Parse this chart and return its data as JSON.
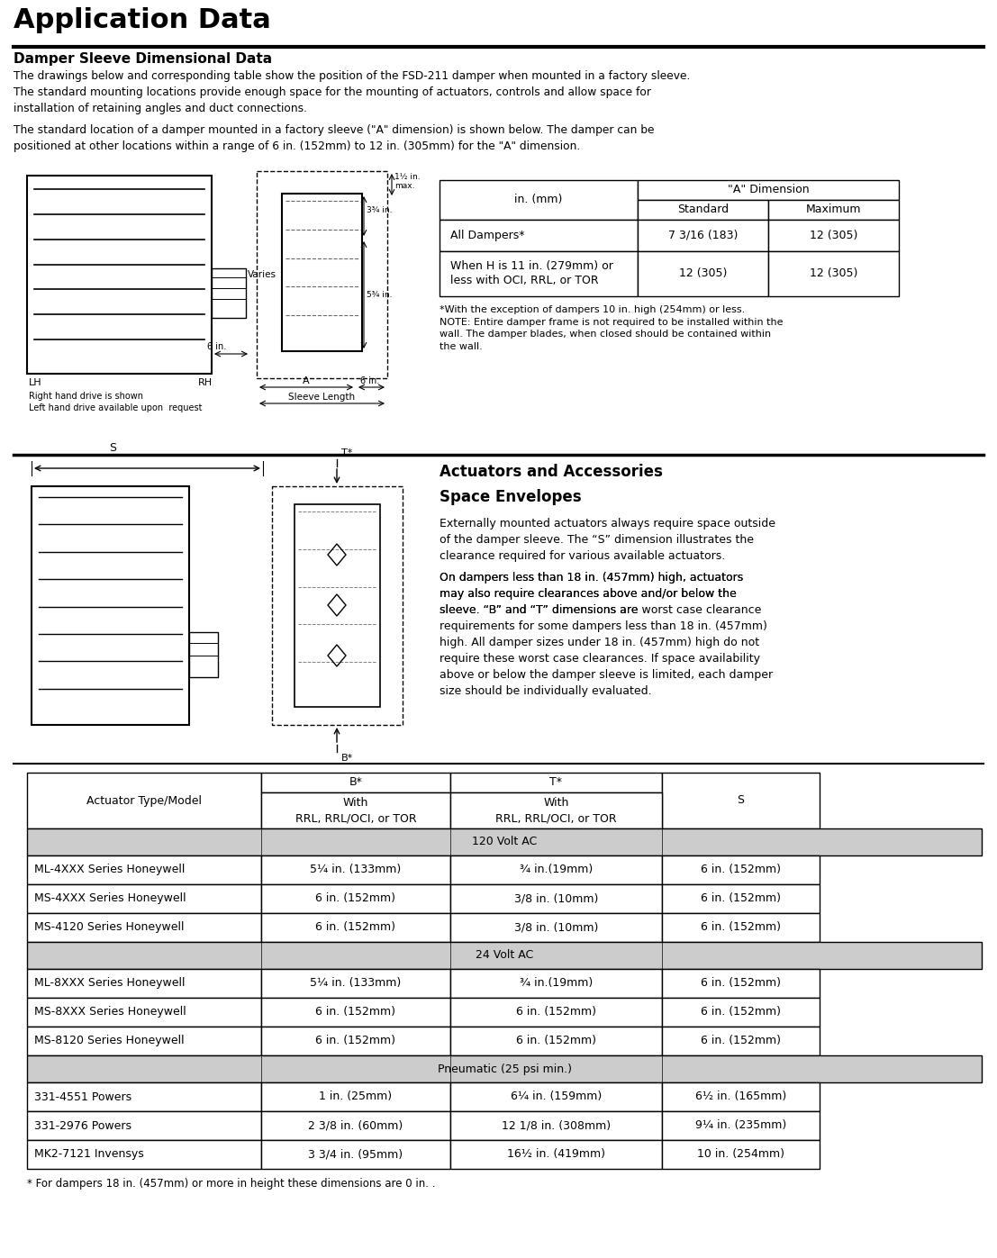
{
  "title": "Application Data",
  "section1_title": "Damper Sleeve Dimensional Data",
  "section1_para1": "The drawings below and corresponding table show the position of the FSD-211 damper when mounted in a factory sleeve.\nThe standard mounting locations provide enough space for the mounting of actuators, controls and allow space for\ninstallation of retaining angles and duct connections.",
  "section1_para2": "The standard location of a damper mounted in a factory sleeve (\"A\" dimension) is shown below. The damper can be\npositioned at other locations within a range of 6 in. (152mm) to 12 in. (305mm) for the \"A\" dimension.",
  "table1_note": "*With the exception of dampers 10 in. high (254mm) or less.\nNOTE: Entire damper frame is not required to be installed within the\nwall. The damper blades, when closed should be contained within\nthe wall.",
  "section2_title": "Actuators and Accessories",
  "section2_subtitle": "Space Envelopes",
  "section2_para1": "Externally mounted actuators always require space outside\nof the damper sleeve. The “S” dimension illustrates the\nclearance required for various available actuators.",
  "section2_para2": "On dampers less than 18 in. (457mm) high, actuators\nmay also require clearances above and/or below the\nsleeve. “B” and “T” dimensions are ",
  "section2_para2b": "worst",
  "section2_para2c": " case clearance\nrequirements for some dampers less than 18 in. (457mm)\nhigh. All damper sizes under 18 in. (457mm) high do not\nrequire these worst case clearances. If space availability\nabove or below the damper sleeve is limited, each damper\nsize should be individually evaluated.",
  "table2_footnote": "* For dampers 18 in. (457mm) or more in height these dimensions are 0 in. .",
  "bg_color": "#ffffff",
  "header_bg": "#cccccc",
  "group_bg": "#cccccc",
  "border_color": "#000000",
  "text_color": "#000000",
  "table2_groups": [
    {
      "group": "120 Volt AC",
      "rows": [
        [
          "ML-4XXX Series Honeywell",
          "5¼ in. (133mm)",
          "¾ in.(19mm)",
          "6 in. (152mm)"
        ],
        [
          "MS-4XXX Series Honeywell",
          "6 in. (152mm)",
          "3/8 in. (10mm)",
          "6 in. (152mm)"
        ],
        [
          "MS-4120 Series Honeywell",
          "6 in. (152mm)",
          "3/8 in. (10mm)",
          "6 in. (152mm)"
        ]
      ]
    },
    {
      "group": "24 Volt AC",
      "rows": [
        [
          "ML-8XXX Series Honeywell",
          "5¼ in. (133mm)",
          "¾ in.(19mm)",
          "6 in. (152mm)"
        ],
        [
          "MS-8XXX Series Honeywell",
          "6 in. (152mm)",
          "6 in. (152mm)",
          "6 in. (152mm)"
        ],
        [
          "MS-8120 Series Honeywell",
          "6 in. (152mm)",
          "6 in. (152mm)",
          "6 in. (152mm)"
        ]
      ]
    },
    {
      "group": "Pneumatic (25 psi min.)",
      "rows": [
        [
          "331-4551 Powers",
          "1 in. (25mm)",
          "6¼ in. (159mm)",
          "6½ in. (165mm)"
        ],
        [
          "331-2976 Powers",
          "2 3/8 in. (60mm)",
          "12 1/8 in. (308mm)",
          "9¼ in. (235mm)"
        ],
        [
          "MK2-7121 Invensys",
          "3 3/4 in. (95mm)",
          "16½ in. (419mm)",
          "10 in. (254mm)"
        ]
      ]
    }
  ]
}
